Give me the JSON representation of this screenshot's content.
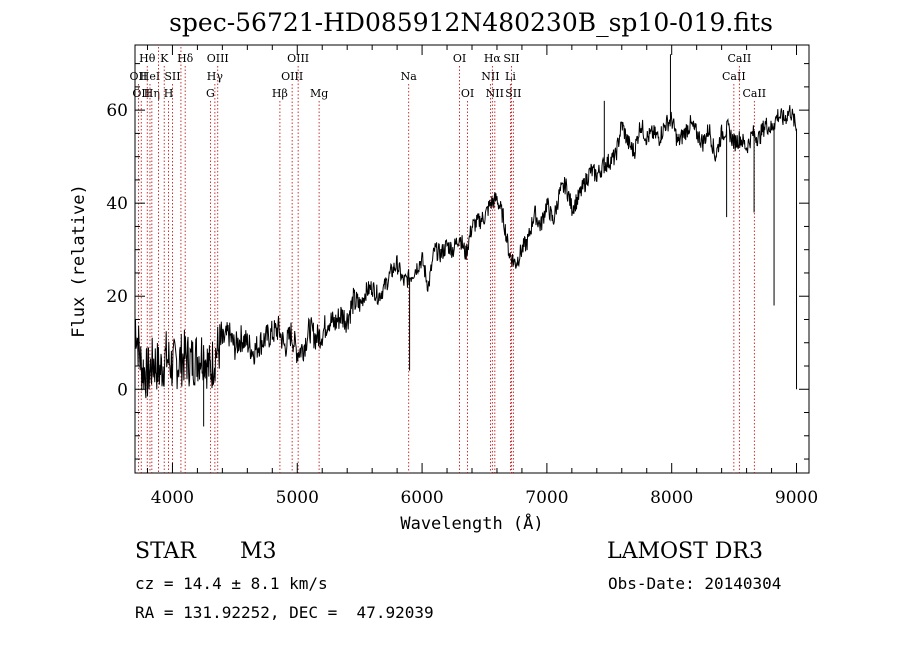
{
  "chart_data": {
    "type": "line",
    "title": "spec-56721-HD085912N480230B_sp10-019.fits",
    "xlabel": "Wavelength (Å)",
    "ylabel": "Flux (relative)",
    "xlim": [
      3700,
      9100
    ],
    "ylim": [
      -18,
      74
    ],
    "x_ticks": [
      4000,
      5000,
      6000,
      7000,
      8000,
      9000
    ],
    "y_ticks": [
      0,
      20,
      40,
      60
    ],
    "grid": false,
    "series": [
      {
        "name": "flux",
        "x": [
          3700,
          3750,
          3800,
          3850,
          3900,
          3950,
          4000,
          4050,
          4100,
          4150,
          4200,
          4250,
          4300,
          4350,
          4400,
          4450,
          4500,
          4550,
          4600,
          4650,
          4700,
          4750,
          4800,
          4850,
          4900,
          4950,
          5000,
          5050,
          5100,
          5150,
          5200,
          5250,
          5300,
          5350,
          5400,
          5450,
          5500,
          5550,
          5600,
          5650,
          5700,
          5750,
          5800,
          5850,
          5900,
          5950,
          6000,
          6050,
          6100,
          6150,
          6200,
          6250,
          6300,
          6350,
          6400,
          6450,
          6500,
          6550,
          6600,
          6650,
          6700,
          6750,
          6800,
          6850,
          6900,
          6950,
          7000,
          7050,
          7100,
          7150,
          7200,
          7250,
          7300,
          7350,
          7400,
          7450,
          7500,
          7550,
          7600,
          7650,
          7700,
          7750,
          7800,
          7850,
          7900,
          7950,
          8000,
          8050,
          8100,
          8150,
          8200,
          8250,
          8300,
          8350,
          8400,
          8450,
          8500,
          8550,
          8600,
          8650,
          8700,
          8750,
          8800,
          8850,
          8900,
          8950,
          9000
        ],
        "values": [
          15,
          5,
          3,
          6,
          4,
          7,
          5,
          6,
          7,
          6,
          7,
          8,
          4,
          8,
          10,
          12,
          9,
          11,
          10,
          8,
          10,
          11,
          12,
          13,
          9,
          12,
          8,
          9,
          13,
          11,
          12,
          15,
          14,
          16,
          15,
          19,
          18,
          21,
          22,
          20,
          22,
          25,
          27,
          23,
          24,
          26,
          28,
          22,
          30,
          29,
          31,
          30,
          33,
          29,
          35,
          36,
          37,
          40,
          41,
          37,
          29,
          27,
          30,
          32,
          38,
          35,
          40,
          36,
          42,
          44,
          39,
          41,
          44,
          47,
          46,
          48,
          49,
          50,
          57,
          53,
          51,
          57,
          54,
          55,
          54,
          57,
          58,
          53,
          55,
          57,
          55,
          53,
          56,
          50,
          55,
          56,
          53,
          54,
          52,
          55,
          54,
          57,
          56,
          59,
          58,
          60,
          56
        ]
      }
    ],
    "spikes": [
      {
        "x": 4250,
        "y": -8
      },
      {
        "x": 5900,
        "y": 4
      },
      {
        "x": 7460,
        "y": 62
      },
      {
        "x": 7990,
        "y": 72
      },
      {
        "x": 8440,
        "y": 37
      },
      {
        "x": 8660,
        "y": 38
      },
      {
        "x": 8820,
        "y": 18
      },
      {
        "x": 9000,
        "y": 0
      }
    ],
    "line_markers": [
      {
        "x": 3727,
        "label": "OII",
        "row": 2
      },
      {
        "x": 3750,
        "label": "OII",
        "row": 3
      },
      {
        "x": 3798,
        "label": "Hθ",
        "row": 1
      },
      {
        "x": 3820,
        "label": "HeI",
        "row": 2
      },
      {
        "x": 3835,
        "label": "Hη",
        "row": 3
      },
      {
        "x": 3889,
        "label": "",
        "row": 0
      },
      {
        "x": 3934,
        "label": "K",
        "row": 1
      },
      {
        "x": 3969,
        "label": "H",
        "row": 3
      },
      {
        "x": 4000,
        "label": "SII",
        "row": 2
      },
      {
        "x": 4068,
        "label": "",
        "row": 0
      },
      {
        "x": 4102,
        "label": "Hδ",
        "row": 1
      },
      {
        "x": 4304,
        "label": "G",
        "row": 3
      },
      {
        "x": 4340,
        "label": "Hγ",
        "row": 2
      },
      {
        "x": 4363,
        "label": "OIII",
        "row": 1
      },
      {
        "x": 4861,
        "label": "Hβ",
        "row": 3
      },
      {
        "x": 4959,
        "label": "OIII",
        "row": 2
      },
      {
        "x": 5007,
        "label": "OIII",
        "row": 1
      },
      {
        "x": 5175,
        "label": "Mg",
        "row": 3
      },
      {
        "x": 5893,
        "label": "Na",
        "row": 2
      },
      {
        "x": 6300,
        "label": "OI",
        "row": 1
      },
      {
        "x": 6364,
        "label": "OI",
        "row": 3
      },
      {
        "x": 6548,
        "label": "NII",
        "row": 2
      },
      {
        "x": 6563,
        "label": "Hα",
        "row": 1
      },
      {
        "x": 6583,
        "label": "NII",
        "row": 3
      },
      {
        "x": 6708,
        "label": "Li",
        "row": 2
      },
      {
        "x": 6716,
        "label": "SII",
        "row": 1
      },
      {
        "x": 6731,
        "label": "SII",
        "row": 3
      },
      {
        "x": 8498,
        "label": "CaII",
        "row": 2
      },
      {
        "x": 8542,
        "label": "CaII",
        "row": 1
      },
      {
        "x": 8662,
        "label": "CaII",
        "row": 3
      }
    ]
  },
  "info": {
    "object_class": "STAR",
    "subclass": "M3",
    "cz": "cz = 14.4 ± 8.1 km/s",
    "coords": "RA = 131.92252, DEC =  47.92039",
    "survey": "LAMOST DR3",
    "obs_date": "Obs-Date: 20140304"
  }
}
